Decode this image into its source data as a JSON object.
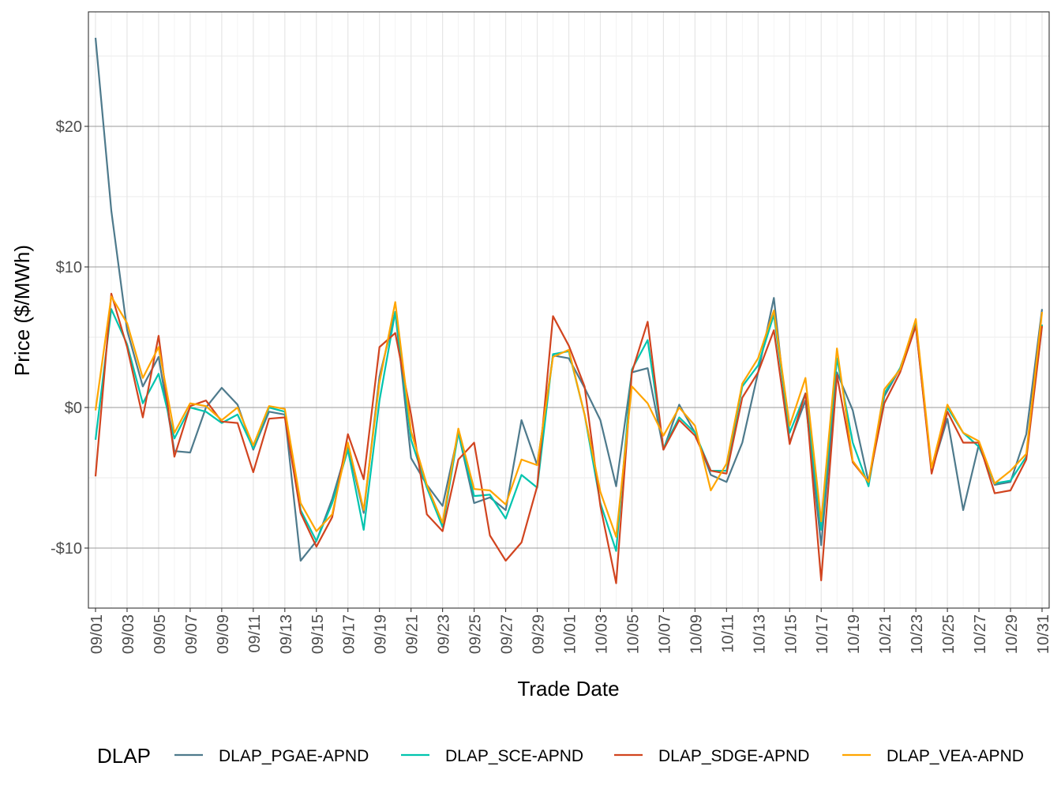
{
  "chart_data": {
    "type": "line",
    "xlabel": "Trade Date",
    "ylabel": "Price ($/MWh)",
    "ylim": [
      -14.1,
      26.8
    ],
    "y_ticks": [
      20,
      10,
      0,
      -10
    ],
    "y_tick_labels": [
      "$20",
      "$10",
      "$0",
      "-$10"
    ],
    "grid": true,
    "legend_title": "DLAP",
    "legend_position": "bottom",
    "x": [
      "09/01",
      "09/02",
      "09/03",
      "09/04",
      "09/05",
      "09/06",
      "09/07",
      "09/08",
      "09/09",
      "09/10",
      "09/11",
      "09/12",
      "09/13",
      "09/14",
      "09/15",
      "09/16",
      "09/17",
      "09/18",
      "09/19",
      "09/20",
      "09/21",
      "09/22",
      "09/23",
      "09/24",
      "09/25",
      "09/26",
      "09/27",
      "09/28",
      "09/29",
      "09/30",
      "10/01",
      "10/02",
      "10/03",
      "10/04",
      "10/05",
      "10/06",
      "10/07",
      "10/08",
      "10/09",
      "10/10",
      "10/11",
      "10/12",
      "10/13",
      "10/14",
      "10/15",
      "10/16",
      "10/17",
      "10/18",
      "10/19",
      "10/20",
      "10/21",
      "10/22",
      "10/23",
      "10/24",
      "10/25",
      "10/26",
      "10/27",
      "10/28",
      "10/29",
      "10/30",
      "10/31"
    ],
    "x_tick_labels": [
      "09/01",
      "09/03",
      "09/05",
      "09/07",
      "09/09",
      "09/11",
      "09/13",
      "09/15",
      "09/17",
      "09/19",
      "09/21",
      "09/23",
      "09/25",
      "09/27",
      "09/29",
      "10/01",
      "10/03",
      "10/05",
      "10/07",
      "10/09",
      "10/11",
      "10/13",
      "10/15",
      "10/17",
      "10/19",
      "10/21",
      "10/23",
      "10/25",
      "10/27",
      "10/29",
      "10/31"
    ],
    "series": [
      {
        "name": "DLAP_PGAE-APND",
        "color": "#4e7a8c",
        "values": [
          26.3,
          14,
          5.5,
          1.5,
          3.6,
          -3.1,
          -3.2,
          0,
          1.4,
          0.2,
          -3.0,
          -0.3,
          -0.5,
          -10.9,
          -9.5,
          -6.5,
          -2.7,
          -7.5,
          2.2,
          6.8,
          -3.6,
          -5.5,
          -7.0,
          -1.8,
          -6.8,
          -6.4,
          -7.3,
          -0.9,
          -4.1,
          3.7,
          3.5,
          1.4,
          -0.9,
          -5.6,
          2.5,
          2.8,
          -3.0,
          0.2,
          -1.8,
          -4.8,
          -5.3,
          -2.5,
          2.5,
          7.8,
          -2.5,
          0.5,
          -9.8,
          2.5,
          -0.2,
          -5.3,
          0.8,
          2.8,
          5.8,
          -4.5,
          -0.8,
          -7.3,
          -2.6,
          -5.5,
          -5.3,
          -1.9,
          7.0
        ]
      },
      {
        "name": "DLAP_SCE-APND",
        "color": "#00c4ae",
        "values": [
          -2.3,
          7.0,
          4.5,
          0.3,
          2.4,
          -2.2,
          0,
          -0.3,
          -1.1,
          -0.5,
          -2.9,
          0,
          -0.3,
          -7.3,
          -9.5,
          -6.8,
          -3.0,
          -8.7,
          0.5,
          6.8,
          -2.3,
          -5.7,
          -8.5,
          -1.8,
          -6.3,
          -6.2,
          -7.9,
          -4.8,
          -5.7,
          3.8,
          4.0,
          -0.5,
          -6.8,
          -10.2,
          2.7,
          4.8,
          -2.9,
          -0.7,
          -1.8,
          -4.5,
          -4.5,
          1.5,
          3.0,
          6.6,
          -1.8,
          1.0,
          -8.7,
          3.5,
          -2.5,
          -5.6,
          1.0,
          2.8,
          6.0,
          -4.5,
          0,
          -1.8,
          -2.8,
          -5.4,
          -5.2,
          -3.5,
          5.9
        ]
      },
      {
        "name": "DLAP_SDGE-APND",
        "color": "#d1441f",
        "values": [
          -4.9,
          8.1,
          4.3,
          -0.7,
          5.1,
          -3.5,
          0.1,
          0.5,
          -1.0,
          -1.1,
          -4.6,
          -0.8,
          -0.7,
          -7.5,
          -9.9,
          -7.8,
          -1.9,
          -5.1,
          4.3,
          5.3,
          -0.5,
          -7.6,
          -8.8,
          -3.7,
          -2.5,
          -9.1,
          -10.9,
          -9.6,
          -5.6,
          6.5,
          4.4,
          1.5,
          -7.0,
          -12.5,
          2.5,
          6.1,
          -3.0,
          -0.9,
          -2.0,
          -4.5,
          -4.7,
          0.7,
          2.5,
          5.5,
          -2.6,
          1.0,
          -12.3,
          2.3,
          -3.9,
          -5.3,
          0.3,
          2.5,
          5.8,
          -4.7,
          -0.3,
          -2.5,
          -2.5,
          -6.1,
          -5.9,
          -3.7,
          5.8
        ]
      },
      {
        "name": "DLAP_VEA-APND",
        "color": "#ffa500",
        "values": [
          -0.2,
          7.9,
          6.0,
          2.1,
          4.3,
          -1.8,
          0.3,
          0.1,
          -0.9,
          0,
          -2.7,
          0.1,
          -0.1,
          -6.8,
          -8.8,
          -7.6,
          -2.5,
          -7.3,
          1.8,
          7.5,
          -1.7,
          -5.5,
          -8.2,
          -1.5,
          -5.8,
          -5.9,
          -6.9,
          -3.7,
          -4.1,
          3.6,
          4.1,
          -0.5,
          -6.0,
          -9.2,
          1.5,
          0.3,
          -2.0,
          0,
          -1.3,
          -5.9,
          -4.0,
          1.7,
          3.5,
          6.9,
          -1.3,
          2.1,
          -8.1,
          4.2,
          -3.8,
          -5.3,
          1.3,
          2.7,
          6.3,
          -4.3,
          0.2,
          -1.8,
          -2.4,
          -5.4,
          -4.5,
          -3.3,
          6.8
        ]
      }
    ]
  }
}
